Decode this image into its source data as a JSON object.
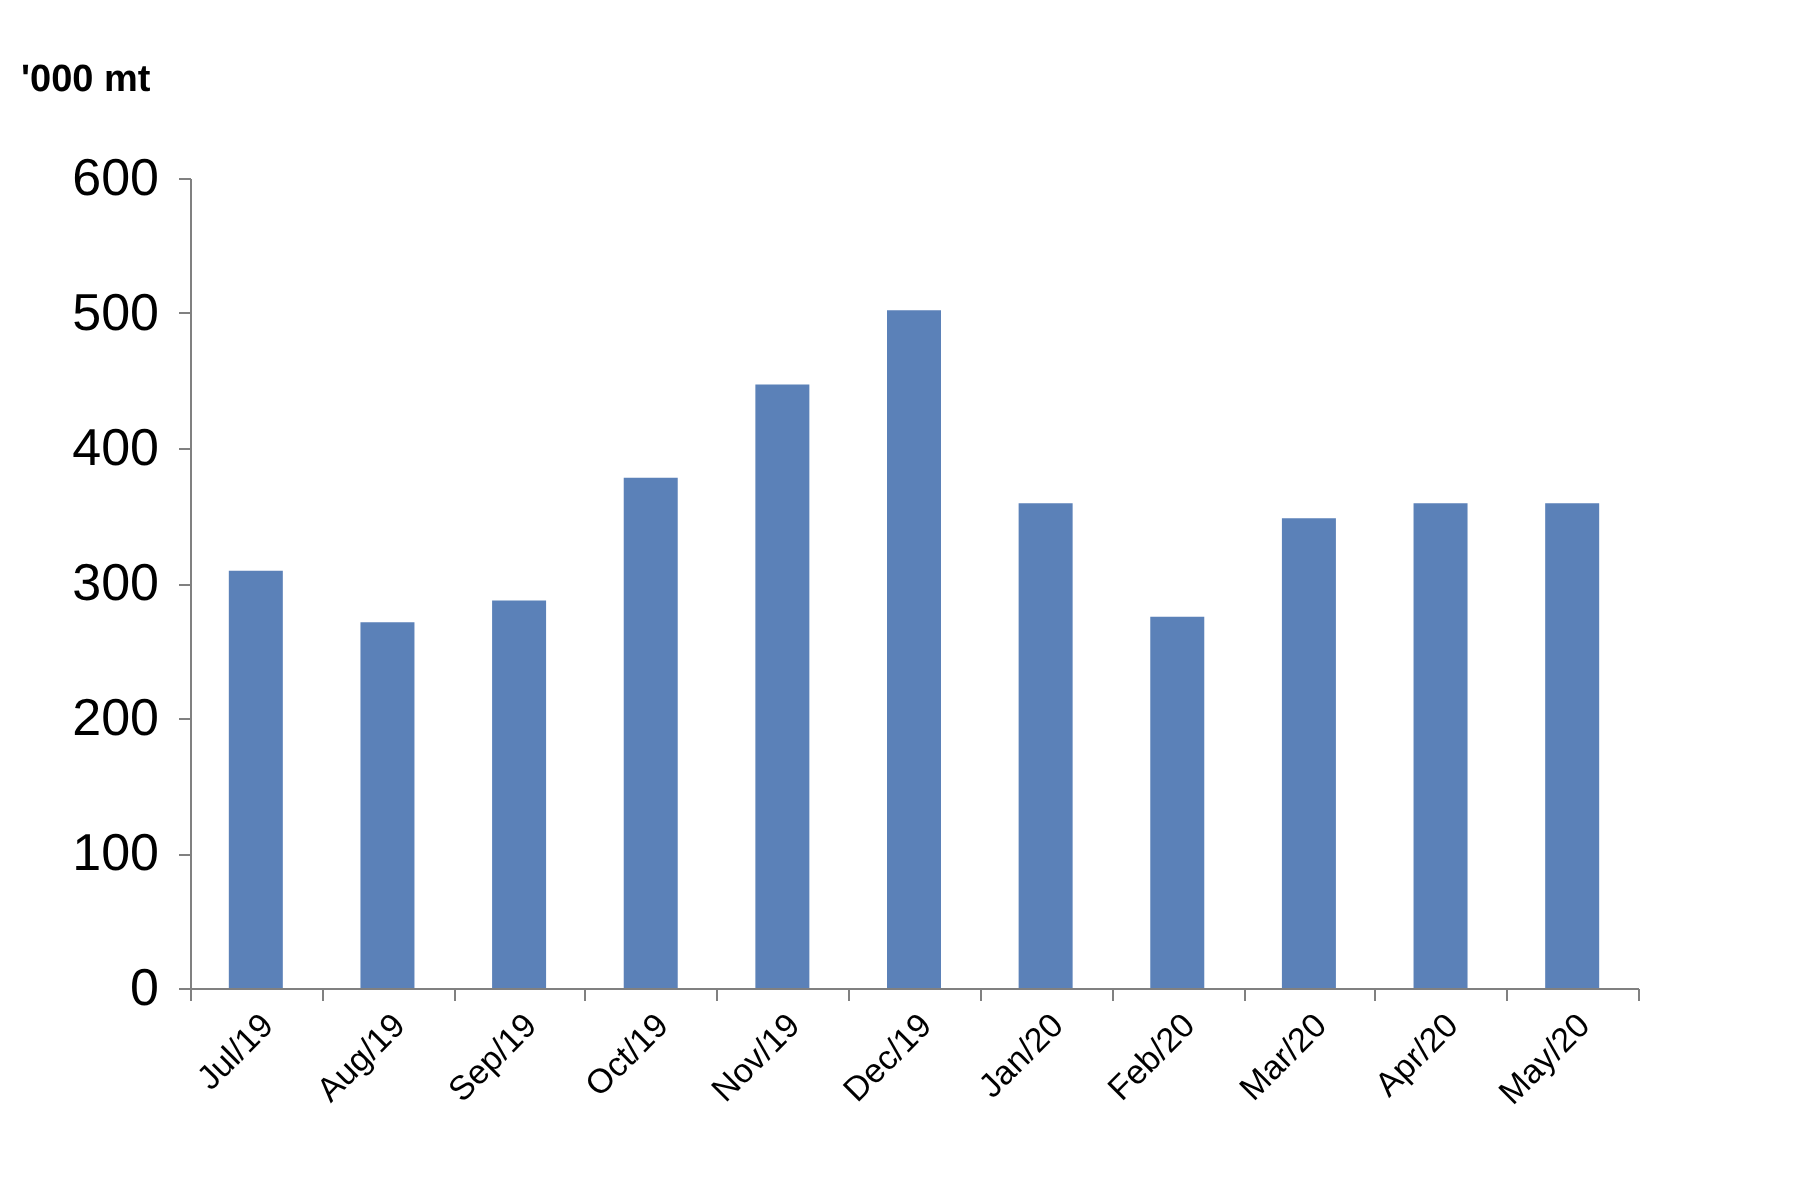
{
  "chart_data": {
    "type": "bar",
    "ylabel": "'000 mt",
    "categories": [
      "Jul/19",
      "Aug/19",
      "Sep/19",
      "Oct/19",
      "Nov/19",
      "Dec/19",
      "Jan/20",
      "Feb/20",
      "Mar/20",
      "Apr/20",
      "May/20"
    ],
    "values": [
      309,
      271,
      287,
      378,
      447,
      502,
      359,
      275,
      348,
      359,
      359
    ],
    "color": "#5b81b8",
    "ylim": [
      0,
      600
    ],
    "yticks": [
      0,
      100,
      200,
      300,
      400,
      500,
      600
    ],
    "grid": false
  }
}
